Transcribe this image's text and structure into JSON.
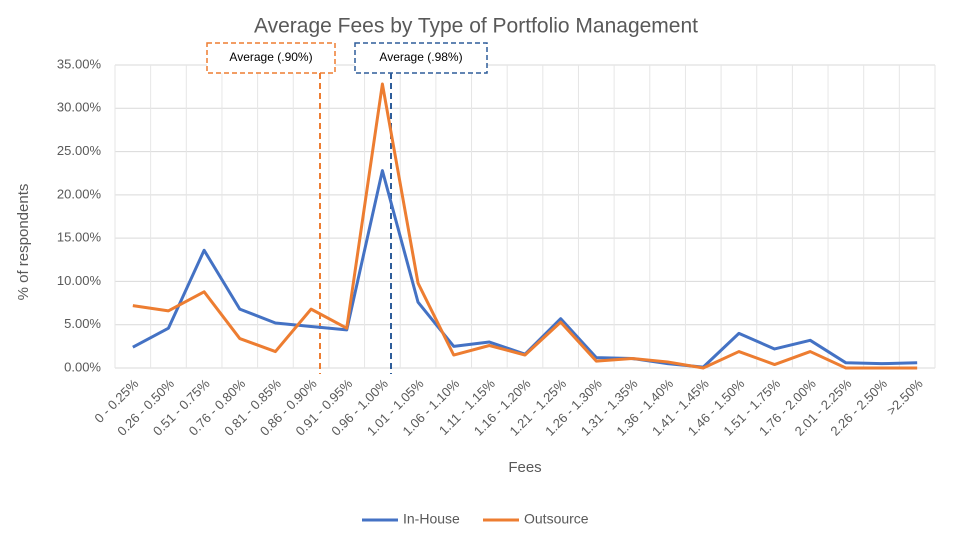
{
  "chart_data": {
    "type": "line",
    "title": "Average Fees by Type of Portfolio Management",
    "x_label": "Fees",
    "y_label": "% of respondents",
    "categories": [
      "0 - 0.25%",
      "0.26 - 0.50%",
      "0.51 - 0.75%",
      "0.76 - 0.80%",
      "0.81 - 0.85%",
      "0.86 - 0.90%",
      "0.91 - 0.95%",
      "0.96 - 1.00%",
      "1.01 - 1.05%",
      "1.06 - 1.10%",
      "1.11 - 1.15%",
      "1.16 - 1.20%",
      "1.21 - 1.25%",
      "1.26 - 1.30%",
      "1.31 - 1.35%",
      "1.36 - 1.40%",
      "1.41 - 1.45%",
      "1.46 - 1.50%",
      "1.51 - 1.75%",
      "1.76 - 2.00%",
      "2.01 - 2.25%",
      "2.26 - 2.50%",
      ">2.50%"
    ],
    "series": [
      {
        "name": "In-House",
        "color": "#4472c4",
        "values": [
          2.4,
          4.6,
          13.6,
          6.8,
          5.2,
          4.8,
          4.4,
          22.8,
          7.6,
          2.5,
          3.0,
          1.6,
          5.7,
          1.2,
          1.1,
          0.5,
          0.1,
          4.0,
          2.2,
          3.2,
          0.6,
          0.5,
          0.6
        ]
      },
      {
        "name": "Outsource",
        "color": "#ed7d31",
        "values": [
          7.2,
          6.6,
          8.8,
          3.4,
          1.9,
          6.8,
          4.6,
          32.8,
          9.8,
          1.5,
          2.6,
          1.5,
          5.3,
          0.8,
          1.1,
          0.7,
          0,
          1.9,
          0.4,
          1.9,
          0,
          0,
          0
        ]
      }
    ],
    "ylim": [
      0,
      35
    ],
    "yticks": [
      {
        "value": 0,
        "label": "0.00%"
      },
      {
        "value": 5,
        "label": "5.00%"
      },
      {
        "value": 10,
        "label": "10.00%"
      },
      {
        "value": 15,
        "label": "15.00%"
      },
      {
        "value": 20,
        "label": "20.00%"
      },
      {
        "value": 25,
        "label": "25.00%"
      },
      {
        "value": 30,
        "label": "30.00%"
      },
      {
        "value": 35,
        "label": "35.00%"
      }
    ],
    "grid": true,
    "legend": "bottom",
    "annotations": [
      {
        "text": "Average (.90%)",
        "color": "#ed7d31"
      },
      {
        "text": "Average (.98%)",
        "color": "#2e5d9a"
      }
    ]
  }
}
